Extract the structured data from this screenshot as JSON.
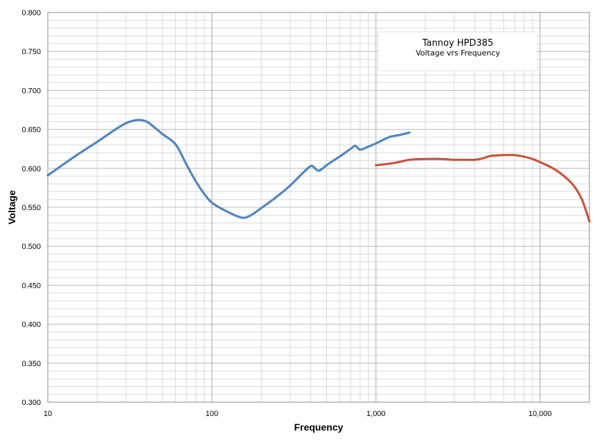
{
  "chart_data": {
    "type": "line",
    "title": "Tannoy HPD385",
    "subtitle": "Voltage vrs Frequency",
    "xlabel": "Frequency",
    "ylabel": "Voltage",
    "x_scale": "log",
    "xlim": [
      10,
      20000
    ],
    "ylim": [
      0.3,
      0.8
    ],
    "x_ticks": [
      10,
      100,
      1000,
      10000
    ],
    "x_tick_labels": [
      "10",
      "100",
      "1,000",
      "10,000"
    ],
    "y_ticks": [
      0.3,
      0.35,
      0.4,
      0.45,
      0.5,
      0.55,
      0.6,
      0.65,
      0.7,
      0.75,
      0.8
    ],
    "y_tick_labels": [
      "0.300",
      "0.350",
      "0.400",
      "0.450",
      "0.500",
      "0.550",
      "0.600",
      "0.650",
      "0.700",
      "0.750",
      "0.800"
    ],
    "grid": true,
    "legend": "none",
    "series": [
      {
        "color": "#4F86C0",
        "x": [
          10,
          15,
          20,
          25,
          30,
          35,
          40,
          45,
          50,
          60,
          70,
          80,
          90,
          100,
          120,
          150,
          170,
          200,
          250,
          300,
          350,
          400,
          420,
          450,
          500,
          550,
          600,
          700,
          750,
          800,
          900,
          1000,
          1200,
          1400,
          1600
        ],
        "y": [
          0.591,
          0.617,
          0.634,
          0.648,
          0.658,
          0.662,
          0.66,
          0.652,
          0.644,
          0.631,
          0.605,
          0.583,
          0.567,
          0.556,
          0.546,
          0.537,
          0.539,
          0.549,
          0.564,
          0.578,
          0.592,
          0.603,
          0.601,
          0.597,
          0.604,
          0.61,
          0.615,
          0.625,
          0.629,
          0.624,
          0.628,
          0.632,
          0.64,
          0.643,
          0.646
        ]
      },
      {
        "color": "#C9553B",
        "x": [
          1000,
          1300,
          1600,
          2000,
          2500,
          3000,
          3500,
          4000,
          4500,
          5000,
          6000,
          7000,
          8000,
          9000,
          10000,
          12000,
          14000,
          16000,
          18000,
          20000
        ],
        "y": [
          0.604,
          0.607,
          0.611,
          0.612,
          0.612,
          0.611,
          0.611,
          0.611,
          0.613,
          0.616,
          0.617,
          0.617,
          0.615,
          0.612,
          0.608,
          0.6,
          0.59,
          0.578,
          0.56,
          0.532
        ]
      }
    ]
  }
}
